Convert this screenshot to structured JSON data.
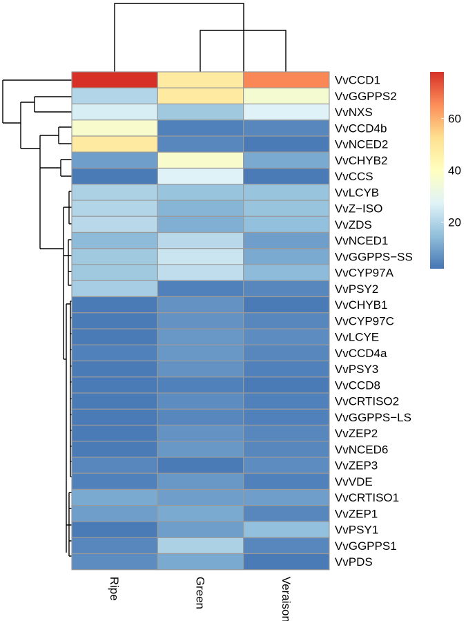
{
  "chart_data": {
    "type": "heatmap",
    "title": "",
    "columns": [
      "Ripe",
      "Green",
      "Veraison"
    ],
    "rows": [
      "VvCCD1",
      "VvGGPPS2",
      "VvNXS",
      "VvCCD4b",
      "VvNCED2",
      "VvCHYB2",
      "VvCCS",
      "VvLCYB",
      "VvZ−ISO",
      "VvZDS",
      "VvNCED1",
      "VvGGPPS−SS",
      "VvCYP97A",
      "VvPSY2",
      "VvCHYB1",
      "VvCYP97C",
      "VvLCYE",
      "VvCCD4a",
      "VvPSY3",
      "VvCCD8",
      "VvCRTISO2",
      "VvGGPPS−LS",
      "VvZEP2",
      "VvNCED6",
      "VvZEP3",
      "VvVDE",
      "VvCRTISO1",
      "VvZEP1",
      "VvPSY1",
      "VvGGPPS1",
      "VvPDS"
    ],
    "values": [
      [
        78,
        48,
        66
      ],
      [
        20,
        48,
        36
      ],
      [
        26,
        17,
        27
      ],
      [
        37,
        4,
        5
      ],
      [
        48,
        5,
        3
      ],
      [
        9,
        37,
        11
      ],
      [
        3,
        27,
        3
      ],
      [
        19,
        16,
        16
      ],
      [
        20,
        13,
        16
      ],
      [
        21,
        12,
        15
      ],
      [
        14,
        21,
        9
      ],
      [
        17,
        24,
        11
      ],
      [
        17,
        22,
        14
      ],
      [
        18,
        4,
        5
      ],
      [
        3,
        7,
        3
      ],
      [
        3,
        7,
        5
      ],
      [
        3,
        8,
        6
      ],
      [
        4,
        8,
        5
      ],
      [
        3,
        7,
        4
      ],
      [
        3,
        4,
        3
      ],
      [
        3,
        6,
        4
      ],
      [
        3,
        5,
        4
      ],
      [
        3,
        7,
        5
      ],
      [
        3,
        8,
        5
      ],
      [
        5,
        3,
        6
      ],
      [
        4,
        8,
        4
      ],
      [
        11,
        9,
        9
      ],
      [
        9,
        11,
        5
      ],
      [
        3,
        9,
        15
      ],
      [
        5,
        19,
        5
      ],
      [
        6,
        11,
        3
      ]
    ],
    "colorbar": {
      "ticks": [
        20,
        40,
        60
      ],
      "range": [
        2,
        78
      ],
      "colors": [
        "#4575b4",
        "#91bfdb",
        "#e0f3f8",
        "#ffffbf",
        "#fee090",
        "#fc8d59",
        "#d73027"
      ]
    },
    "dendrogram_row_order": "hierarchical clustering (rows)",
    "dendrogram_col_order": "hierarchical clustering (columns)"
  }
}
